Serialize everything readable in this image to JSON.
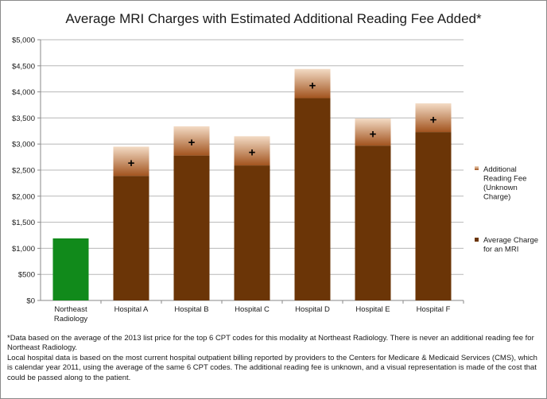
{
  "chart_data": {
    "type": "bar",
    "stacked": true,
    "title": "Average MRI Charges with Estimated Additional Reading Fee Added",
    "title_mark": "*",
    "categories": [
      [
        "Northeast",
        "Radiology"
      ],
      [
        "Hospital A"
      ],
      [
        "Hospital B"
      ],
      [
        "Hospital C"
      ],
      [
        "Hospital D"
      ],
      [
        "Hospital E"
      ],
      [
        "Hospital F"
      ]
    ],
    "ylim": [
      0,
      5000
    ],
    "yticks": [
      0,
      500,
      1000,
      1500,
      2000,
      2500,
      3000,
      3500,
      4000,
      4500,
      5000
    ],
    "ytick_labels": [
      "$0",
      "$500",
      "$1,000",
      "$1,500",
      "$2,000",
      "$2,500",
      "$3,000",
      "$3,500",
      "$4,000",
      "$4,500",
      "$5,000"
    ],
    "grid": true,
    "legend_position": "right",
    "series": [
      {
        "name": "Average Charge for an MRI",
        "legend_lines": [
          "Average Charge",
          "for an MRI"
        ],
        "values": [
          1190,
          2390,
          2780,
          2590,
          3880,
          2970,
          3230
        ],
        "color": "#6b3507",
        "highlight": {
          "index": 0,
          "color": "#118a1b"
        }
      },
      {
        "name": "Additional Reading Fee (Unknown Charge)",
        "legend_lines": [
          "Additional",
          "Reading Fee",
          "(Unknown",
          "Charge)"
        ],
        "values": [
          0,
          560,
          560,
          560,
          560,
          520,
          550
        ],
        "color_bottom": "#a2541f",
        "color_top": "#f3dbc5"
      }
    ],
    "markers": {
      "symbol": "+",
      "values": [
        null,
        2640,
        3030,
        2840,
        4120,
        3190,
        3470
      ]
    }
  },
  "notes": [
    "*Data based on the average of the 2013 list price for the top 6 CPT codes for this modality at Northeast Radiology.  There is never an additional reading fee for Northeast Radiology.",
    "Local hospital data is based on the most current hospital outpatient billing reported by providers to the Centers for Medicare & Medicaid Services (CMS), which is calendar year 2011, using the average of the same 6 CPT codes.  The additional reading fee is unknown, and a visual representation is made of the cost that could be passed along to the patient."
  ]
}
